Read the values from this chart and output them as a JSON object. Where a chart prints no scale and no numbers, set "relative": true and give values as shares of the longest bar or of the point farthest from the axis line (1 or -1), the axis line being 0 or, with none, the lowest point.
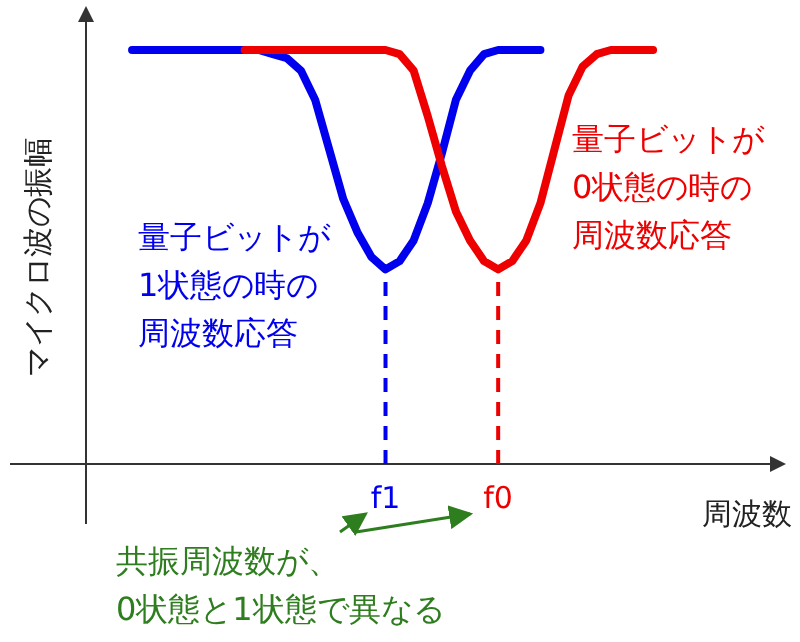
{
  "chart_data": {
    "type": "line",
    "relative": true,
    "xlabel": "周波数",
    "ylabel": "マイクロ波の振幅",
    "categories": [
      null,
      null,
      null,
      null,
      null,
      null,
      null,
      null,
      null,
      null,
      null,
      null,
      null,
      null,
      null,
      null,
      null,
      null,
      "f1",
      null,
      null,
      null,
      null,
      null,
      null,
      null,
      "f0",
      null,
      null,
      null,
      null,
      null,
      null,
      null,
      null,
      null,
      null,
      null
    ],
    "series": [
      {
        "color": "#0000ee",
        "values": [
          1,
          1,
          1,
          1,
          1,
          1,
          1,
          1,
          1,
          1,
          0.99,
          0.98,
          0.95,
          0.88,
          0.76,
          0.64,
          0.56,
          0.5,
          0.47,
          0.49,
          0.54,
          0.63,
          0.75,
          0.88,
          0.95,
          0.99,
          1,
          1,
          1,
          1,
          null,
          null,
          null,
          null,
          null,
          null,
          null,
          null
        ]
      },
      {
        "color": "#ee0000",
        "values": [
          null,
          null,
          null,
          null,
          null,
          null,
          null,
          null,
          1,
          1,
          1,
          1,
          1,
          1,
          1,
          1,
          1,
          1,
          1,
          0.99,
          0.95,
          0.84,
          0.72,
          0.61,
          0.54,
          0.49,
          0.47,
          0.49,
          0.54,
          0.63,
          0.76,
          0.89,
          0.96,
          0.99,
          1,
          1,
          1,
          1
        ]
      }
    ],
    "ref_lines": [
      {
        "axis": "x",
        "value": "f1",
        "color": "#0000ee",
        "line_style": "dashed"
      },
      {
        "axis": "x",
        "value": "f0",
        "color": "#ee0000",
        "line_style": "dashed"
      }
    ],
    "annotations": [
      "量子ビットが1状態の時の周波数応答",
      "量子ビットが0状態の時の周波数応答",
      "共振周波数が、0状態と1状態で異なる"
    ],
    "grid": false
  }
}
